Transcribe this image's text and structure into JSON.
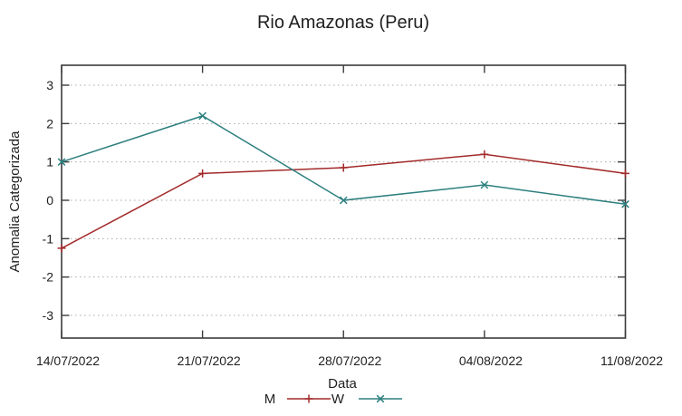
{
  "chart_data": {
    "type": "line",
    "title": "Rio Amazonas (Peru)",
    "xlabel": "Data",
    "ylabel": "Anomalia Categorizada",
    "categories": [
      "14/07/2022",
      "21/07/2022",
      "28/07/2022",
      "04/08/2022",
      "11/08/2022"
    ],
    "series": [
      {
        "name": "M",
        "color": "#a32a2a",
        "marker": "plus",
        "values": [
          -1.25,
          0.7,
          0.85,
          1.2,
          0.7
        ]
      },
      {
        "name": "W",
        "color": "#2e7f7f",
        "marker": "cross",
        "values": [
          1.0,
          2.2,
          0.0,
          0.4,
          -0.1
        ]
      }
    ],
    "y_ticks": [
      3,
      2,
      1,
      0,
      -1,
      -2,
      -3
    ],
    "ylim": [
      -3.55,
      3.55
    ],
    "grid": "horizontal-dotted",
    "legend_position": "bottom-center"
  },
  "colors": {
    "background": "#ffffff",
    "plot_border": "#3c3c3c",
    "gridline": "#a9a9a9",
    "tick": "#3c3c3c",
    "text": "#1f1f1f"
  }
}
